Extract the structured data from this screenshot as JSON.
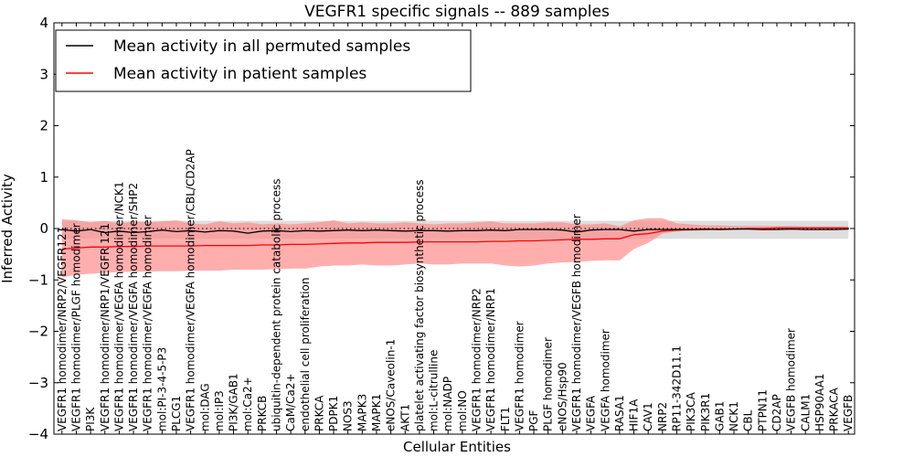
{
  "chart_data": {
    "type": "line",
    "title": "VEGFR1 specific signals -- 889 samples",
    "xlabel": "Cellular Entities",
    "ylabel": "Inferred Activity",
    "ylim": [
      -4,
      4
    ],
    "yticks": [
      -4,
      -3,
      -2,
      -1,
      0,
      1,
      2,
      3,
      4
    ],
    "ytick_labels": [
      "−4",
      "−3",
      "−2",
      "−1",
      "0",
      "1",
      "2",
      "3",
      "4"
    ],
    "grid": false,
    "legend_position": "top-left",
    "colors": {
      "permuted_line": "#000000",
      "patient_line": "#ff0000",
      "patient_band": "#ff8c8c",
      "permuted_band": "#cccccc"
    },
    "categories": [
      "VEGFR1 homodimer/NRP2/VEGFR121",
      "VEGFR1 homodimer/PLGF homodimer",
      "PI3K",
      "VEGFR1 homodimer/NRP1/VEGFR 121",
      "VEGFR1 homodimer/VEGFA homodimer/NCK1",
      "VEGFR1 homodimer/VEGFA homodimer/SHP2",
      "VEGFR1 homodimer/VEGFA homodimer",
      "mol:PI-3-4-5-P3",
      "PLCG1",
      "VEGFR1 homodimer/VEGFA homodimer/CBL/CD2AP",
      "mol:DAG",
      "mol:IP3",
      "PI3K/GAB1",
      "mol:Ca2+",
      "PRKCB",
      "ubiquitin-dependent protein catabolic process",
      "CaM/Ca2+",
      "endothelial cell proliferation",
      "PRKCA",
      "PDPK1",
      "NOS3",
      "MAPK3",
      "MAPK1",
      "eNOS/Caveolin-1",
      "AKT1",
      "platelet activating factor biosynthetic process",
      "mol:L-citrulline",
      "mol:NADP",
      "mol:NO",
      "VEGFR1 homodimer/NRP2",
      "VEGFR1 homodimer/NRP1",
      "FLT1",
      "VEGFR1 homodimer",
      "PGF",
      "PLGF homodimer",
      "eNOS/Hsp90",
      "VEGFR1 homodimer/VEGFB homodimer",
      "VEGFA",
      "VEGFA homodimer",
      "RASA1",
      "HIF1A",
      "CAV1",
      "NRP2",
      "RP11-342D11.1",
      "PIK3CA",
      "PIK3R1",
      "GAB1",
      "NCK1",
      "CBL",
      "PTPN11",
      "CD2AP",
      "VEGFB homodimer",
      "CALM1",
      "HSP90AA1",
      "PRKACA",
      "VEGFB"
    ],
    "series": [
      {
        "name": "Mean activity in all permuted samples",
        "values": [
          -0.02,
          -0.05,
          -0.02,
          -0.08,
          -0.05,
          -0.08,
          -0.06,
          -0.03,
          -0.06,
          -0.04,
          -0.07,
          -0.04,
          -0.05,
          -0.09,
          -0.05,
          -0.04,
          -0.06,
          -0.04,
          -0.05,
          -0.04,
          -0.03,
          -0.04,
          -0.03,
          -0.04,
          -0.05,
          -0.04,
          -0.04,
          -0.05,
          -0.04,
          -0.04,
          -0.03,
          -0.04,
          -0.02,
          -0.02,
          -0.02,
          -0.03,
          -0.07,
          -0.03,
          -0.02,
          -0.02,
          -0.05,
          -0.02,
          -0.02,
          -0.02,
          -0.02,
          -0.01,
          -0.02,
          -0.01,
          -0.01,
          -0.02,
          -0.02,
          -0.01,
          -0.02,
          -0.02,
          -0.02,
          -0.01
        ],
        "band_lower": [
          -0.2,
          -0.2,
          -0.2,
          -0.2,
          -0.2,
          -0.2,
          -0.2,
          -0.2,
          -0.2,
          -0.2,
          -0.2,
          -0.2,
          -0.2,
          -0.2,
          -0.2,
          -0.2,
          -0.2,
          -0.2,
          -0.2,
          -0.2,
          -0.2,
          -0.2,
          -0.2,
          -0.2,
          -0.2,
          -0.2,
          -0.2,
          -0.2,
          -0.2,
          -0.2,
          -0.2,
          -0.2,
          -0.2,
          -0.2,
          -0.2,
          -0.2,
          -0.2,
          -0.2,
          -0.2,
          -0.2,
          -0.2,
          -0.2,
          -0.2,
          -0.2,
          -0.2,
          -0.2,
          -0.2,
          -0.2,
          -0.2,
          -0.2,
          -0.2,
          -0.2,
          -0.2,
          -0.2,
          -0.2,
          -0.2
        ],
        "band_upper": [
          0.15,
          0.15,
          0.15,
          0.15,
          0.15,
          0.15,
          0.15,
          0.15,
          0.15,
          0.15,
          0.15,
          0.15,
          0.15,
          0.15,
          0.15,
          0.15,
          0.15,
          0.15,
          0.15,
          0.15,
          0.15,
          0.15,
          0.15,
          0.15,
          0.15,
          0.15,
          0.15,
          0.15,
          0.15,
          0.15,
          0.15,
          0.15,
          0.15,
          0.15,
          0.15,
          0.15,
          0.15,
          0.15,
          0.15,
          0.15,
          0.15,
          0.15,
          0.15,
          0.15,
          0.15,
          0.15,
          0.15,
          0.15,
          0.15,
          0.15,
          0.15,
          0.15,
          0.15,
          0.15,
          0.15,
          0.15
        ]
      },
      {
        "name": "Mean activity in patient samples",
        "values": [
          -0.4,
          -0.38,
          -0.36,
          -0.36,
          -0.35,
          -0.35,
          -0.34,
          -0.34,
          -0.34,
          -0.34,
          -0.33,
          -0.33,
          -0.33,
          -0.33,
          -0.32,
          -0.32,
          -0.31,
          -0.31,
          -0.3,
          -0.29,
          -0.28,
          -0.28,
          -0.27,
          -0.27,
          -0.27,
          -0.26,
          -0.26,
          -0.26,
          -0.26,
          -0.26,
          -0.25,
          -0.25,
          -0.24,
          -0.24,
          -0.23,
          -0.22,
          -0.21,
          -0.21,
          -0.2,
          -0.2,
          -0.12,
          -0.1,
          -0.05,
          -0.03,
          -0.02,
          -0.02,
          -0.01,
          -0.01,
          0,
          0,
          0.01,
          0.01,
          0.01,
          0.01,
          0.01,
          0.01
        ],
        "band_lower": [
          -0.95,
          -0.9,
          -0.88,
          -0.86,
          -0.85,
          -0.84,
          -0.84,
          -0.83,
          -0.83,
          -0.82,
          -0.82,
          -0.82,
          -0.8,
          -0.8,
          -0.8,
          -0.79,
          -0.78,
          -0.78,
          -0.74,
          -0.72,
          -0.72,
          -0.7,
          -0.72,
          -0.72,
          -0.7,
          -0.68,
          -0.7,
          -0.7,
          -0.68,
          -0.68,
          -0.68,
          -0.72,
          -0.74,
          -0.72,
          -0.68,
          -0.66,
          -0.65,
          -0.63,
          -0.62,
          -0.62,
          -0.4,
          -0.28,
          -0.1,
          -0.06,
          -0.05,
          -0.04,
          -0.03,
          -0.03,
          -0.02,
          -0.02,
          -0.02,
          -0.02,
          -0.02,
          -0.02,
          -0.02,
          -0.02
        ],
        "band_upper": [
          0.18,
          0.16,
          0.12,
          0.15,
          0.1,
          0.14,
          0.12,
          0.14,
          0.16,
          0.1,
          0.08,
          0.14,
          0.1,
          0.12,
          0.08,
          0.1,
          0.08,
          0.1,
          0.12,
          0.16,
          0.1,
          0.12,
          0.1,
          0.1,
          0.12,
          0.1,
          0.08,
          0.1,
          0.1,
          0.12,
          0.14,
          0.1,
          0.1,
          0.1,
          0.12,
          0.12,
          0.08,
          0.08,
          0.1,
          0.04,
          0.16,
          0.2,
          0.2,
          0.1,
          0.08,
          0.06,
          0.06,
          0.05,
          0.05,
          0.05,
          0.05,
          0.05,
          0.04,
          0.04,
          0.04,
          0.04
        ]
      }
    ]
  }
}
